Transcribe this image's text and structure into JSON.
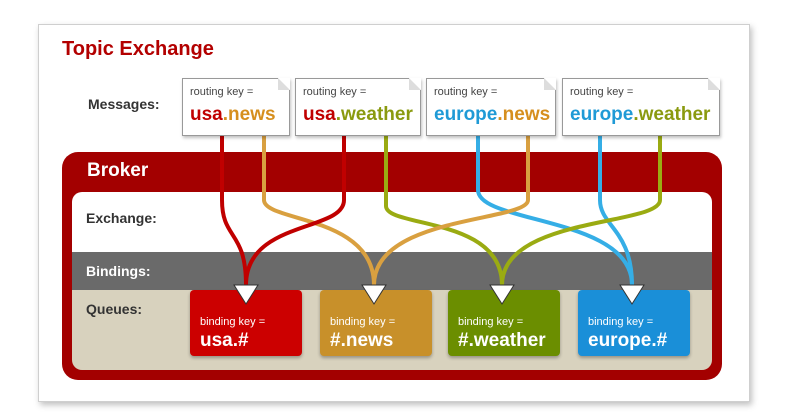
{
  "title": "Topic Exchange",
  "labels": {
    "messages": "Messages:",
    "broker": "Broker",
    "exchange": "Exchange:",
    "bindings": "Bindings:",
    "queues": "Queues:"
  },
  "messages": [
    {
      "routing_label": "routing key =",
      "key_part1": "usa",
      "key_sep": ".",
      "key_part2": "news",
      "color1": "#c00000",
      "color2": "#d68f1e"
    },
    {
      "routing_label": "routing key =",
      "key_part1": "usa",
      "key_sep": ".",
      "key_part2": "weather",
      "color1": "#c00000",
      "color2": "#8a9a0f"
    },
    {
      "routing_label": "routing key =",
      "key_part1": "europe",
      "key_sep": ".",
      "key_part2": "news",
      "color1": "#1f9ad6",
      "color2": "#d68f1e"
    },
    {
      "routing_label": "routing key =",
      "key_part1": "europe",
      "key_sep": ".",
      "key_part2": "weather",
      "color1": "#1f9ad6",
      "color2": "#8a9a0f"
    }
  ],
  "queues": [
    {
      "binding_label": "binding key =",
      "binding_key": "usa.#",
      "color": "#cc0000"
    },
    {
      "binding_label": "binding key =",
      "binding_key": "#.news",
      "color": "#c8902a"
    },
    {
      "binding_label": "binding key =",
      "binding_key": "#.weather",
      "color": "#6b8e00"
    },
    {
      "binding_label": "binding key =",
      "binding_key": "europe.#",
      "color": "#1a8fd8"
    }
  ],
  "colors": {
    "brand_red": "#a30000",
    "title_red": "#b30000",
    "route_usa": "#c00000",
    "route_news": "#d9a040",
    "route_weather": "#9aab12",
    "route_europe": "#35aee6",
    "bindings_bar": "#6a6a6a",
    "queues_bg": "#d8d2be"
  }
}
